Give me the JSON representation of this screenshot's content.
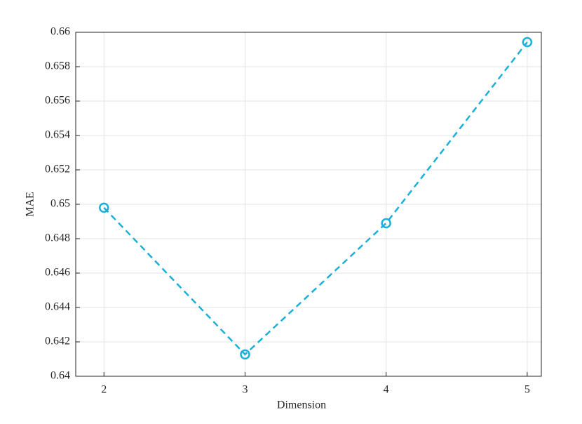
{
  "chart_data": {
    "type": "line",
    "x_label": "Dimension",
    "y_label": "MAE",
    "x": [
      2,
      3,
      4,
      5
    ],
    "series": [
      {
        "name": "MAE",
        "color": "#1ab0d8",
        "values": [
          0.6498,
          0.64127,
          0.6489,
          0.65943
        ]
      }
    ],
    "xlim": [
      1.8,
      5.1
    ],
    "xticks": [
      2,
      3,
      4,
      5
    ],
    "ylim": [
      0.64,
      0.66
    ],
    "yticks": [
      0.64,
      0.642,
      0.644,
      0.646,
      0.648,
      0.65,
      0.652,
      0.654,
      0.656,
      0.658,
      0.66
    ],
    "grid": true,
    "line_style": "dashed",
    "marker": "circle"
  }
}
